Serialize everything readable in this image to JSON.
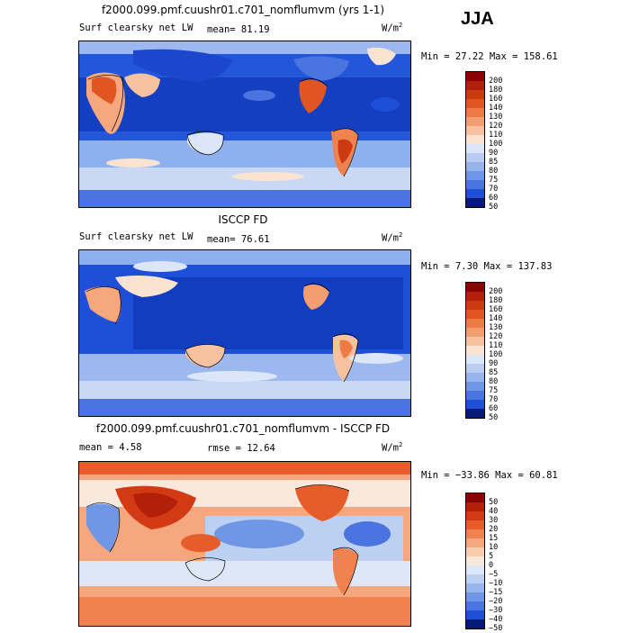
{
  "season": "JJA",
  "units": "W/m",
  "units_sup": "2",
  "panels": [
    {
      "heading": "f2000.099.pmf.cuushr01.c701_nomflumvm (yrs 1-1)",
      "left_label": "Surf clearsky net LW",
      "stat1": "mean=  81.19",
      "stat2": "",
      "minmax": "Min =  27.22 Max = 158.61",
      "colorbar": [
        "200",
        "180",
        "160",
        "140",
        "130",
        "120",
        "110",
        "100",
        "90",
        "85",
        "80",
        "75",
        "70",
        "60",
        "50"
      ]
    },
    {
      "heading": "ISCCP FD",
      "left_label": "Surf clearsky net LW",
      "stat1": "mean=  76.61",
      "stat2": "",
      "minmax": "Min =   7.30 Max = 137.83",
      "colorbar": [
        "200",
        "180",
        "160",
        "140",
        "130",
        "120",
        "110",
        "100",
        "90",
        "85",
        "80",
        "75",
        "70",
        "60",
        "50"
      ]
    },
    {
      "heading": "f2000.099.pmf.cuushr01.c701_nomflumvm - ISCCP FD",
      "left_label": "mean =   4.58",
      "stat1": "rmse =  12.64",
      "stat2": "",
      "minmax": "Min = −33.86 Max =  60.81",
      "colorbar": [
        "50",
        "40",
        "30",
        "20",
        "15",
        "10",
        "5",
        "0",
        "−5",
        "−10",
        "−15",
        "−20",
        "−30",
        "−40",
        "−50"
      ]
    }
  ],
  "colors": {
    "abs_scale": [
      "#8b0000",
      "#b3200a",
      "#cc3a10",
      "#e05522",
      "#ee7a45",
      "#f49d70",
      "#f8c2a0",
      "#fbe3d2",
      "#dbe6f8",
      "#b9ccf2",
      "#97b3ec",
      "#6f95e6",
      "#4a74e0",
      "#1f4fd8",
      "#0a2aa8",
      "#061a7a"
    ],
    "diff_scale": [
      "#8b0000",
      "#b3200a",
      "#d13a12",
      "#e65c2a",
      "#f08250",
      "#f6a77e",
      "#f9ccb0",
      "#fbe8dc",
      "#dde7f7",
      "#bcd0f1",
      "#99b6ec",
      "#7097e5",
      "#4a74df",
      "#1f4fd8",
      "#0a2aa8",
      "#061a7a"
    ]
  }
}
